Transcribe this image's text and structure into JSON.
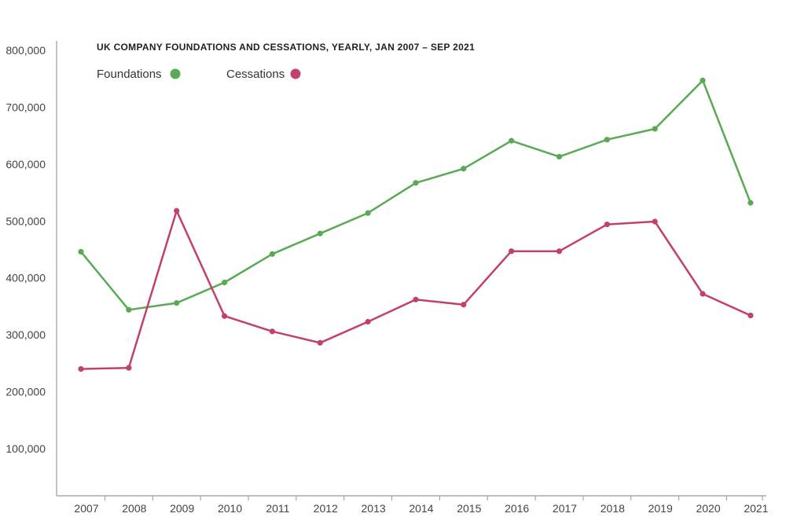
{
  "chart_data": {
    "type": "line",
    "title": "UK COMPANY FOUNDATIONS AND CESSATIONS, YEARLY, JAN 2007 – SEP 2021",
    "xlabel": "",
    "ylabel": "",
    "categories": [
      "2007",
      "2008",
      "2009",
      "2010",
      "2011",
      "2012",
      "2013",
      "2014",
      "2015",
      "2016",
      "2017",
      "2018",
      "2019",
      "2020",
      "2021"
    ],
    "ylim": [
      0,
      800000
    ],
    "yticks": [
      100000,
      200000,
      300000,
      400000,
      500000,
      600000,
      700000,
      800000
    ],
    "ytick_labels": [
      "100,000",
      "200,000",
      "300,000",
      "400,000",
      "500,000",
      "600,000",
      "700,000",
      "800,000"
    ],
    "grid": false,
    "legend_position": "top-left",
    "series": [
      {
        "name": "Foundations",
        "color": "#5aaa55",
        "values": [
          446000,
          344000,
          356000,
          392000,
          442000,
          478000,
          514000,
          567000,
          592000,
          641000,
          613000,
          643000,
          662000,
          747000,
          532000
        ]
      },
      {
        "name": "Cessations",
        "color": "#c2416b",
        "values": [
          240000,
          242000,
          518000,
          333000,
          306000,
          286000,
          323000,
          362000,
          353000,
          447000,
          447000,
          494000,
          499000,
          372000,
          334000
        ]
      }
    ]
  }
}
